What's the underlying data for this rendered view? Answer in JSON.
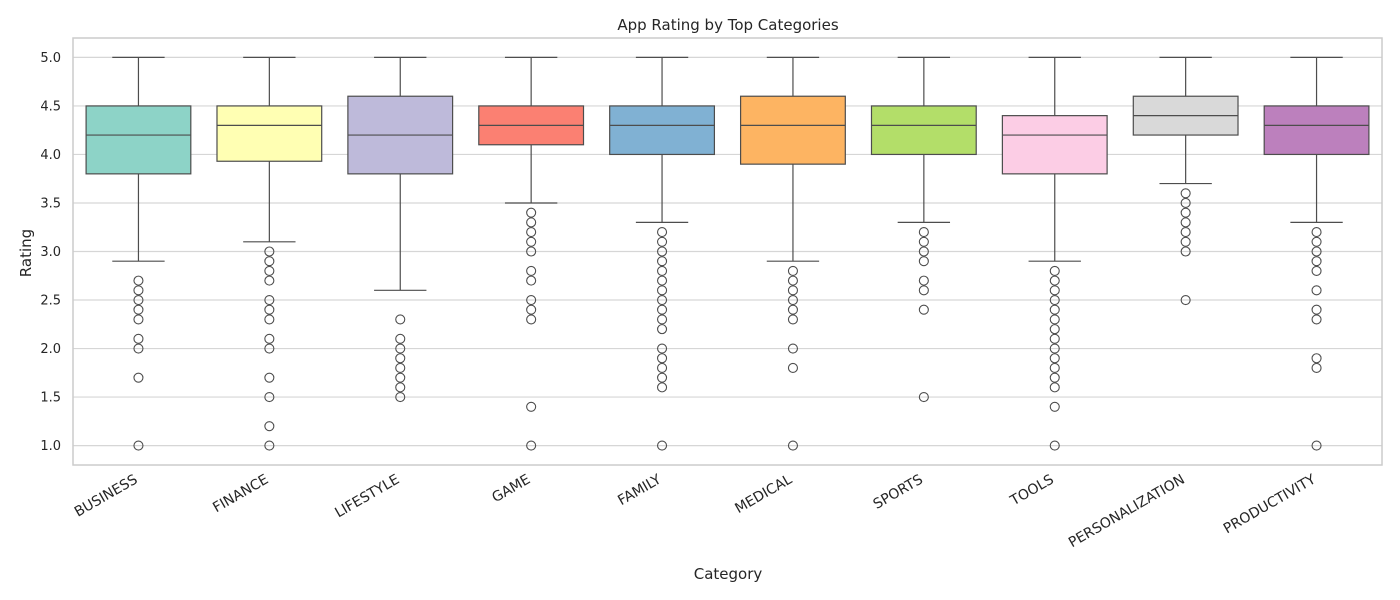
{
  "chart_data": {
    "type": "box",
    "title": "App Rating by Top Categories",
    "xlabel": "Category",
    "ylabel": "Rating",
    "ylim": [
      0.8,
      5.2
    ],
    "yticks": [
      "1.0",
      "1.5",
      "2.0",
      "2.5",
      "3.0",
      "3.5",
      "4.0",
      "4.5",
      "5.0"
    ],
    "grid": true,
    "categories": [
      "BUSINESS",
      "FINANCE",
      "LIFESTYLE",
      "GAME",
      "FAMILY",
      "MEDICAL",
      "SPORTS",
      "TOOLS",
      "PERSONALIZATION",
      "PRODUCTIVITY"
    ],
    "series": [
      {
        "category": "BUSINESS",
        "color": "#8dd3c7",
        "whisker_low": 2.9,
        "q1": 3.8,
        "median": 4.2,
        "q3": 4.5,
        "whisker_high": 5.0,
        "outliers": [
          2.7,
          2.6,
          2.5,
          2.4,
          2.3,
          2.1,
          2.0,
          1.7,
          1.0
        ]
      },
      {
        "category": "FINANCE",
        "color": "#ffffb3",
        "whisker_low": 3.1,
        "q1": 3.93,
        "median": 4.3,
        "q3": 4.5,
        "whisker_high": 5.0,
        "outliers": [
          3.0,
          2.9,
          2.8,
          2.7,
          2.5,
          2.4,
          2.3,
          2.1,
          2.0,
          1.7,
          1.5,
          1.2,
          1.0
        ]
      },
      {
        "category": "LIFESTYLE",
        "color": "#bebada",
        "whisker_low": 2.6,
        "q1": 3.8,
        "median": 4.2,
        "q3": 4.6,
        "whisker_high": 5.0,
        "outliers": [
          2.3,
          2.1,
          2.0,
          1.9,
          1.8,
          1.7,
          1.6,
          1.5
        ]
      },
      {
        "category": "GAME",
        "color": "#fb8072",
        "whisker_low": 3.5,
        "q1": 4.1,
        "median": 4.3,
        "q3": 4.5,
        "whisker_high": 5.0,
        "outliers": [
          3.4,
          3.3,
          3.2,
          3.1,
          3.0,
          2.8,
          2.7,
          2.5,
          2.4,
          2.3,
          1.4,
          1.0
        ]
      },
      {
        "category": "FAMILY",
        "color": "#80b1d3",
        "whisker_low": 3.3,
        "q1": 4.0,
        "median": 4.3,
        "q3": 4.5,
        "whisker_high": 5.0,
        "outliers": [
          3.2,
          3.1,
          3.0,
          2.9,
          2.8,
          2.7,
          2.6,
          2.5,
          2.4,
          2.3,
          2.2,
          2.0,
          1.9,
          1.8,
          1.7,
          1.6,
          1.0
        ]
      },
      {
        "category": "MEDICAL",
        "color": "#fdb462",
        "whisker_low": 2.9,
        "q1": 3.9,
        "median": 4.3,
        "q3": 4.6,
        "whisker_high": 5.0,
        "outliers": [
          2.8,
          2.7,
          2.6,
          2.5,
          2.4,
          2.3,
          2.0,
          1.8,
          1.0
        ]
      },
      {
        "category": "SPORTS",
        "color": "#b3de69",
        "whisker_low": 3.3,
        "q1": 4.0,
        "median": 4.3,
        "q3": 4.5,
        "whisker_high": 5.0,
        "outliers": [
          3.2,
          3.1,
          3.0,
          2.9,
          2.7,
          2.6,
          2.4,
          1.5
        ]
      },
      {
        "category": "TOOLS",
        "color": "#fccde5",
        "whisker_low": 2.9,
        "q1": 3.8,
        "median": 4.2,
        "q3": 4.4,
        "whisker_high": 5.0,
        "outliers": [
          2.8,
          2.7,
          2.6,
          2.5,
          2.4,
          2.3,
          2.2,
          2.1,
          2.0,
          1.9,
          1.8,
          1.7,
          1.6,
          1.4,
          1.0
        ]
      },
      {
        "category": "PERSONALIZATION",
        "color": "#d9d9d9",
        "whisker_low": 3.7,
        "q1": 4.2,
        "median": 4.4,
        "q3": 4.6,
        "whisker_high": 5.0,
        "outliers": [
          3.6,
          3.5,
          3.4,
          3.3,
          3.2,
          3.1,
          3.0,
          2.5
        ]
      },
      {
        "category": "PRODUCTIVITY",
        "color": "#bc80bd",
        "whisker_low": 3.3,
        "q1": 4.0,
        "median": 4.3,
        "q3": 4.5,
        "whisker_high": 5.0,
        "outliers": [
          3.2,
          3.1,
          3.0,
          2.9,
          2.8,
          2.6,
          2.4,
          2.3,
          1.9,
          1.8,
          1.0
        ]
      }
    ]
  }
}
